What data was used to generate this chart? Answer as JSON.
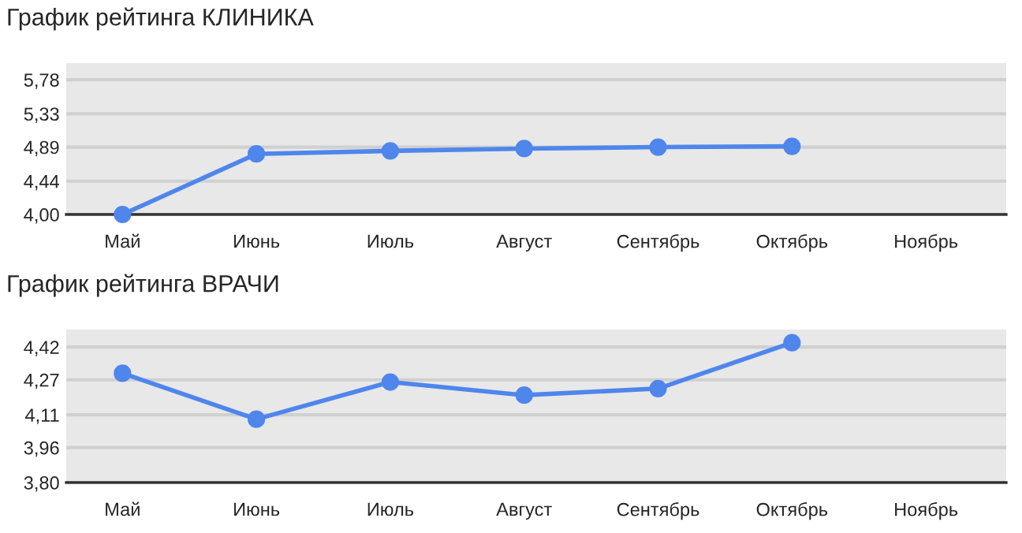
{
  "chart_data": [
    {
      "type": "line",
      "title": "График рейтинга КЛИНИКА",
      "categories": [
        "Май",
        "Июнь",
        "Июль",
        "Август",
        "Сентябрь",
        "Октябрь",
        "Ноябрь"
      ],
      "series": [
        {
          "color": "#4f86ec",
          "values": [
            4.0,
            4.8,
            4.84,
            4.87,
            4.89,
            4.9,
            null
          ]
        }
      ],
      "ylim": [
        4.0,
        6.0
      ],
      "yticks": [
        {
          "value": 4.0,
          "label": "4,00"
        },
        {
          "value": 4.44,
          "label": "4,44"
        },
        {
          "value": 4.89,
          "label": "4,89"
        },
        {
          "value": 5.33,
          "label": "5,33"
        },
        {
          "value": 5.78,
          "label": "5,78"
        }
      ],
      "grid": "y",
      "marker": "circle",
      "line_style": "solid"
    },
    {
      "type": "line",
      "title": "График рейтинга ВРАЧИ",
      "categories": [
        "Май",
        "Июнь",
        "Июль",
        "Август",
        "Сентябрь",
        "Октябрь",
        "Ноябрь"
      ],
      "series": [
        {
          "color": "#4f86ec",
          "values": [
            4.3,
            4.09,
            4.26,
            4.2,
            4.23,
            4.44,
            null
          ]
        }
      ],
      "ylim": [
        3.8,
        4.5
      ],
      "yticks": [
        {
          "value": 3.8,
          "label": "3,80"
        },
        {
          "value": 3.96,
          "label": "3,96"
        },
        {
          "value": 4.11,
          "label": "4,11"
        },
        {
          "value": 4.27,
          "label": "4,27"
        },
        {
          "value": 4.42,
          "label": "4,42"
        }
      ],
      "grid": "y",
      "marker": "circle",
      "line_style": "solid"
    }
  ]
}
